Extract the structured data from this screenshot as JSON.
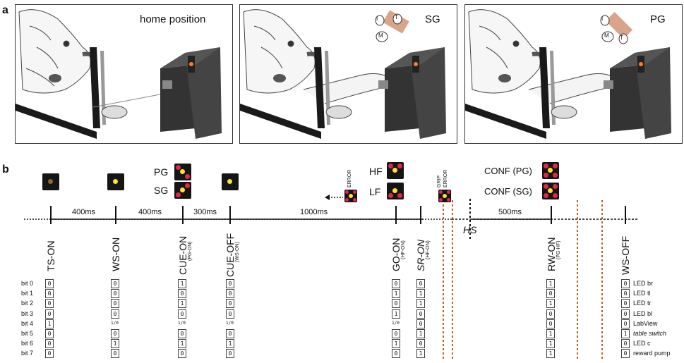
{
  "panel_a": {
    "letter": "a",
    "panels": [
      {
        "label": "home position",
        "grip_letters": []
      },
      {
        "label": "SG",
        "grip_letters": [
          "I",
          "T",
          "M"
        ]
      },
      {
        "label": "PG",
        "grip_letters": [
          "I",
          "M",
          "T"
        ]
      }
    ]
  },
  "panel_b": {
    "letter": "b",
    "intervals": [
      "400ms",
      "400ms",
      "300ms",
      "1000ms",
      "500ms"
    ],
    "events": [
      {
        "label": "TS-ON",
        "sub": ""
      },
      {
        "label": "WS-ON",
        "sub": ""
      },
      {
        "label": "CUE-ON",
        "sub": "(PG-ON)"
      },
      {
        "label": "CUE-OFF",
        "sub": "(WS-ON)"
      },
      {
        "label": "GO-ON",
        "sub": "(HF-ON)"
      },
      {
        "label": "SR-ON",
        "sub": "(HF-ON)"
      },
      {
        "label": "RW-ON",
        "sub": "(PG-HF)"
      },
      {
        "label": "WS-OFF",
        "sub": ""
      }
    ],
    "hs": "HS",
    "cue_labels": {
      "pg": "PG",
      "sg": "SG"
    },
    "go_labels": {
      "hf": "HF",
      "lf": "LF"
    },
    "conf_labels": {
      "pg": "CONF (PG)",
      "sg": "CONF (SG)"
    },
    "error": "ERROR",
    "grip": "GRIP",
    "grip_error": "ERROR",
    "bit_labels": [
      "bit 0",
      "bit 1",
      "bit 2",
      "bit 3",
      "bit 4",
      "bit 5",
      "bit 6",
      "bit 7"
    ],
    "bit_columns": [
      [
        "0",
        "0",
        "0",
        "0",
        "1",
        "0",
        "0",
        "0"
      ],
      [
        "0",
        "0",
        "0",
        "0",
        "1/0",
        "0",
        "1",
        "0"
      ],
      [
        "1",
        "0",
        "1",
        "0",
        "1/0",
        "0",
        "1",
        "0"
      ],
      [
        "0",
        "0",
        "0",
        "0",
        "1/0",
        "0",
        "1",
        "0"
      ],
      [
        "0",
        "1",
        "0",
        "1",
        "1/0",
        "0",
        "1",
        "0"
      ],
      [
        "0",
        "1",
        "1",
        "0",
        "0",
        "1",
        "0",
        "1"
      ],
      [
        "1",
        "0",
        "1",
        "0",
        "0",
        "1",
        "1",
        "1"
      ],
      [
        "0",
        "0",
        "0",
        "0",
        "0",
        "1",
        "0",
        "0"
      ]
    ],
    "row_labels": [
      "LED br",
      "LED tl",
      "LED tr",
      "LED bl",
      "LabView",
      "table switch",
      "LED c",
      "reward pump"
    ]
  },
  "colors": {
    "led_red": "#e0284a",
    "led_yellow": "#ffe033",
    "led_dim": "#8a6a2a",
    "dotted_orange": "#b8602a"
  }
}
